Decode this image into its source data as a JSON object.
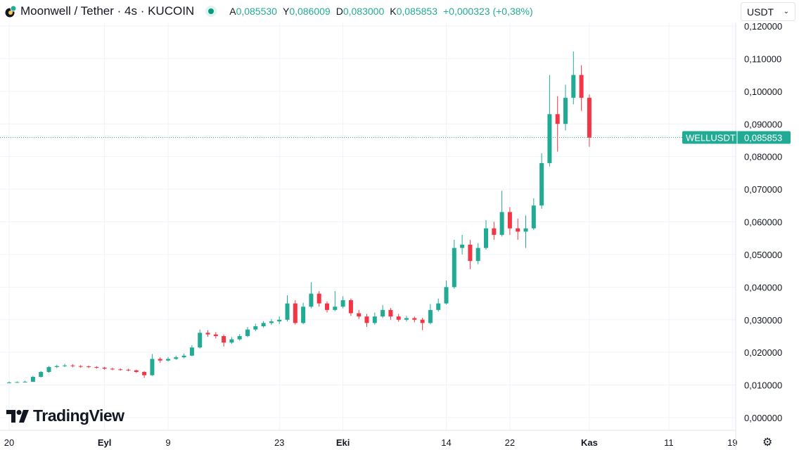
{
  "header": {
    "title": "Moonwell / Tether · 4s · KUCOIN",
    "ohlc": [
      {
        "label": "A",
        "value": "0,085530"
      },
      {
        "label": "Y",
        "value": "0,086009"
      },
      {
        "label": "D",
        "value": "0,083000"
      },
      {
        "label": "K",
        "value": "0,085853"
      }
    ],
    "change": "+0,000323 (+0,38%)",
    "currency_select": "USDT"
  },
  "branding": {
    "name": "TradingView"
  },
  "colors": {
    "up": "#22ab94",
    "down": "#f23645",
    "grid": "#f0f3fa",
    "label": "#22ab94"
  },
  "chart_data": {
    "type": "candlestick",
    "symbol_label": "WELLUSDT",
    "last_price": 0.085853,
    "last_price_label": "0,085853",
    "ylim": [
      0,
      0.12
    ],
    "yticks": [
      "0,000000",
      "0,010000",
      "0,020000",
      "0,030000",
      "0,040000",
      "0,050000",
      "0,060000",
      "0,070000",
      "0,080000",
      "0,090000",
      "0,100000",
      "0,110000",
      "0,120000"
    ],
    "ytick_values": [
      0,
      0.01,
      0.02,
      0.03,
      0.04,
      0.05,
      0.06,
      0.07,
      0.08,
      0.09,
      0.1,
      0.11,
      0.12
    ],
    "xticks": [
      "20",
      "Eyl",
      "9",
      "23",
      "Eki",
      "14",
      "22",
      "Kas",
      "11",
      "19"
    ],
    "xtick_days": [
      0,
      12,
      20,
      34,
      42,
      55,
      63,
      73,
      83,
      91
    ],
    "grid": true,
    "candles_ohlc_daily_from_aug20": [
      [
        0.0107,
        0.0111,
        0.0106,
        0.0108
      ],
      [
        0.0108,
        0.0111,
        0.0107,
        0.0109
      ],
      [
        0.0109,
        0.0113,
        0.0108,
        0.011
      ],
      [
        0.011,
        0.0128,
        0.0109,
        0.0125
      ],
      [
        0.0125,
        0.0143,
        0.0123,
        0.014
      ],
      [
        0.014,
        0.0158,
        0.0138,
        0.0155
      ],
      [
        0.0155,
        0.0162,
        0.0152,
        0.0158
      ],
      [
        0.0158,
        0.0165,
        0.0155,
        0.016
      ],
      [
        0.016,
        0.0164,
        0.0154,
        0.0158
      ],
      [
        0.0158,
        0.0161,
        0.0153,
        0.0157
      ],
      [
        0.0157,
        0.016,
        0.0152,
        0.0155
      ],
      [
        0.0155,
        0.0158,
        0.015,
        0.0153
      ],
      [
        0.0153,
        0.0156,
        0.0147,
        0.015
      ],
      [
        0.015,
        0.0153,
        0.0145,
        0.0148
      ],
      [
        0.0148,
        0.0151,
        0.0144,
        0.0147
      ],
      [
        0.0147,
        0.015,
        0.0142,
        0.0145
      ],
      [
        0.0145,
        0.0147,
        0.0137,
        0.014
      ],
      [
        0.014,
        0.0143,
        0.0122,
        0.013
      ],
      [
        0.013,
        0.0195,
        0.0128,
        0.018
      ],
      [
        0.018,
        0.0185,
        0.0168,
        0.0175
      ],
      [
        0.0175,
        0.0186,
        0.0172,
        0.018
      ],
      [
        0.018,
        0.019,
        0.0177,
        0.0185
      ],
      [
        0.0185,
        0.0196,
        0.0182,
        0.019
      ],
      [
        0.019,
        0.0222,
        0.0188,
        0.0215
      ],
      [
        0.0215,
        0.027,
        0.0212,
        0.026
      ],
      [
        0.026,
        0.0268,
        0.0248,
        0.0255
      ],
      [
        0.0255,
        0.0262,
        0.0243,
        0.025
      ],
      [
        0.025,
        0.0255,
        0.0218,
        0.023
      ],
      [
        0.023,
        0.0247,
        0.0226,
        0.024
      ],
      [
        0.024,
        0.0256,
        0.0236,
        0.025
      ],
      [
        0.025,
        0.0278,
        0.0247,
        0.027
      ],
      [
        0.027,
        0.0288,
        0.0265,
        0.028
      ],
      [
        0.028,
        0.0296,
        0.0276,
        0.029
      ],
      [
        0.029,
        0.0302,
        0.0284,
        0.0295
      ],
      [
        0.0295,
        0.031,
        0.0287,
        0.03
      ],
      [
        0.03,
        0.0375,
        0.0295,
        0.035
      ],
      [
        0.035,
        0.036,
        0.0285,
        0.029
      ],
      [
        0.029,
        0.0352,
        0.0286,
        0.034
      ],
      [
        0.034,
        0.0415,
        0.0335,
        0.038
      ],
      [
        0.038,
        0.0388,
        0.034,
        0.035
      ],
      [
        0.035,
        0.0356,
        0.0322,
        0.033
      ],
      [
        0.033,
        0.0388,
        0.0326,
        0.034
      ],
      [
        0.034,
        0.0372,
        0.0335,
        0.036
      ],
      [
        0.036,
        0.0365,
        0.0312,
        0.032
      ],
      [
        0.032,
        0.033,
        0.0302,
        0.031
      ],
      [
        0.031,
        0.0318,
        0.0278,
        0.029
      ],
      [
        0.029,
        0.0322,
        0.0285,
        0.031
      ],
      [
        0.031,
        0.0345,
        0.0305,
        0.033
      ],
      [
        0.033,
        0.0336,
        0.03,
        0.031
      ],
      [
        0.031,
        0.0318,
        0.0294,
        0.03
      ],
      [
        0.03,
        0.0312,
        0.0295,
        0.0305
      ],
      [
        0.0305,
        0.031,
        0.0292,
        0.03
      ],
      [
        0.03,
        0.0306,
        0.0268,
        0.029
      ],
      [
        0.029,
        0.0348,
        0.0286,
        0.033
      ],
      [
        0.033,
        0.0365,
        0.0325,
        0.035
      ],
      [
        0.035,
        0.042,
        0.0346,
        0.04
      ],
      [
        0.04,
        0.0545,
        0.0395,
        0.052
      ],
      [
        0.052,
        0.056,
        0.05,
        0.053
      ],
      [
        0.053,
        0.0545,
        0.0455,
        0.048
      ],
      [
        0.048,
        0.0535,
        0.047,
        0.052
      ],
      [
        0.052,
        0.0605,
        0.0515,
        0.058
      ],
      [
        0.058,
        0.06,
        0.0545,
        0.056
      ],
      [
        0.056,
        0.0695,
        0.0555,
        0.063
      ],
      [
        0.063,
        0.0645,
        0.056,
        0.058
      ],
      [
        0.058,
        0.061,
        0.0545,
        0.057
      ],
      [
        0.057,
        0.062,
        0.052,
        0.058
      ],
      [
        0.058,
        0.0672,
        0.0575,
        0.065
      ],
      [
        0.065,
        0.081,
        0.064,
        0.078
      ],
      [
        0.078,
        0.105,
        0.077,
        0.093
      ],
      [
        0.093,
        0.0985,
        0.0815,
        0.09
      ],
      [
        0.09,
        0.102,
        0.088,
        0.098
      ],
      [
        0.098,
        0.1122,
        0.096,
        0.105
      ],
      [
        0.105,
        0.108,
        0.094,
        0.098
      ],
      [
        0.098,
        0.099,
        0.083,
        0.0858
      ]
    ]
  }
}
